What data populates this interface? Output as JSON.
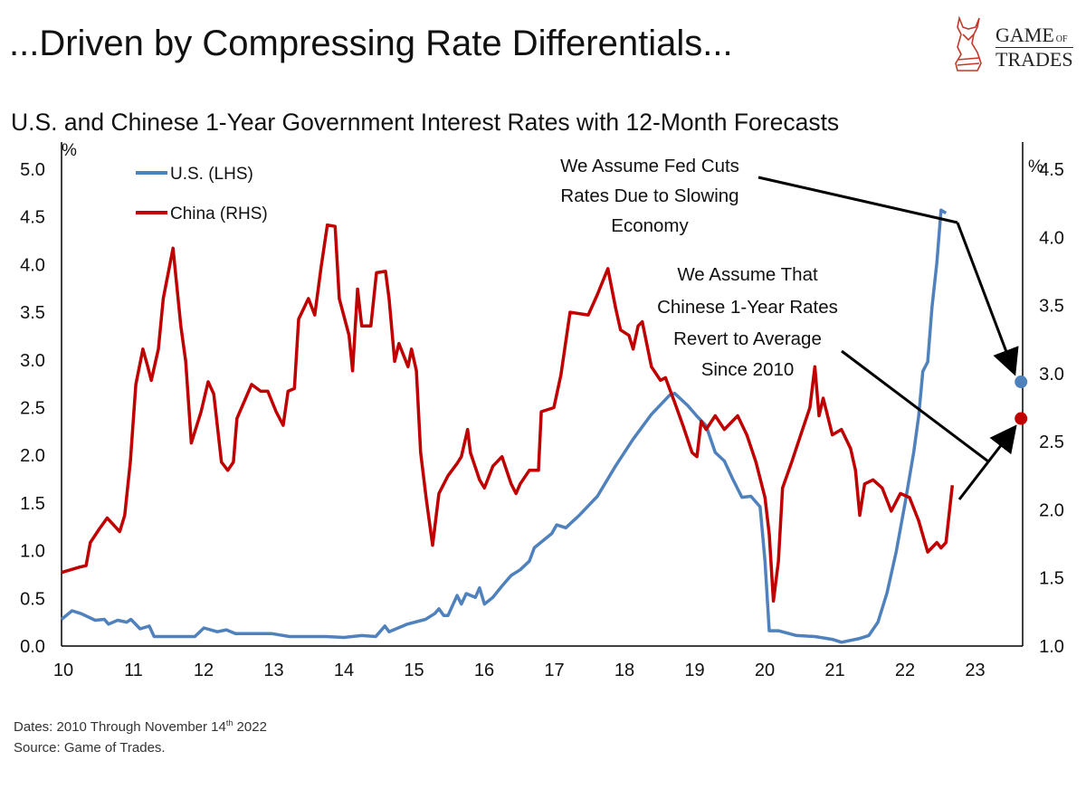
{
  "title": "...Driven by Compressing Rate Differentials...",
  "logo": {
    "line1": "GAME",
    "of": "OF",
    "line2": "TRADES"
  },
  "footer": {
    "dates_prefix": "Dates: 2010 Through November 14",
    "dates_sup": "th",
    "dates_suffix": " 2022",
    "source": "Source: Game of Trades."
  },
  "chart_data": {
    "type": "line",
    "title": "U.S. and Chinese 1-Year Government Interest Rates with 12-Month Forecasts",
    "ylabel_left": "%",
    "ylabel_right": "%",
    "xlim": [
      2010,
      2024.1
    ],
    "ylim_left": [
      0,
      5
    ],
    "ylim_right": [
      1,
      4.5
    ],
    "x_ticks": [
      {
        "v": 2010,
        "label": "10"
      },
      {
        "v": 2011,
        "label": "11"
      },
      {
        "v": 2012,
        "label": "12"
      },
      {
        "v": 2013,
        "label": "13"
      },
      {
        "v": 2014,
        "label": "14"
      },
      {
        "v": 2015,
        "label": "15"
      },
      {
        "v": 2016,
        "label": "16"
      },
      {
        "v": 2017,
        "label": "17"
      },
      {
        "v": 2018,
        "label": "18"
      },
      {
        "v": 2019,
        "label": "19"
      },
      {
        "v": 2020,
        "label": "20"
      },
      {
        "v": 2021,
        "label": "21"
      },
      {
        "v": 2022,
        "label": "22"
      },
      {
        "v": 2023,
        "label": "23"
      }
    ],
    "y_ticks_left": [
      "0.0",
      "0.5",
      "1.0",
      "1.5",
      "2.0",
      "2.5",
      "3.0",
      "3.5",
      "4.0",
      "4.5",
      "5.0"
    ],
    "y_ticks_right": [
      "1.0",
      "1.5",
      "2.0",
      "2.5",
      "3.0",
      "3.5",
      "4.0",
      "4.5"
    ],
    "legend_position": "top-left",
    "grid": false,
    "series": [
      {
        "name": "U.S. (LHS)",
        "axis": "left",
        "color": "#4f81bd",
        "x": [
          2010.0,
          2010.15,
          2010.28,
          2010.48,
          2010.61,
          2010.67,
          2010.8,
          2010.93,
          2010.99,
          2011.12,
          2011.25,
          2011.32,
          2011.9,
          2012.03,
          2012.22,
          2012.35,
          2012.48,
          2012.74,
          2013.0,
          2013.25,
          2013.51,
          2013.77,
          2014.03,
          2014.28,
          2014.48,
          2014.54,
          2014.61,
          2014.67,
          2014.93,
          2015.19,
          2015.32,
          2015.38,
          2015.45,
          2015.51,
          2015.64,
          2015.7,
          2015.77,
          2015.9,
          2015.96,
          2016.03,
          2016.15,
          2016.28,
          2016.41,
          2016.54,
          2016.67,
          2016.74,
          2016.99,
          2017.06,
          2017.19,
          2017.38,
          2017.64,
          2017.9,
          2018.15,
          2018.41,
          2018.67,
          2018.74,
          2018.93,
          2019.06,
          2019.19,
          2019.32,
          2019.45,
          2019.57,
          2019.7,
          2019.83,
          2019.96,
          2020.03,
          2020.09,
          2020.22,
          2020.48,
          2020.74,
          2020.99,
          2021.12,
          2021.38,
          2021.51,
          2021.64,
          2021.77,
          2021.9,
          2022.03,
          2022.15,
          2022.22,
          2022.28,
          2022.35,
          2022.41,
          2022.48,
          2022.54,
          2022.61
        ],
        "y": [
          0.28,
          0.37,
          0.34,
          0.27,
          0.28,
          0.23,
          0.27,
          0.25,
          0.28,
          0.18,
          0.21,
          0.1,
          0.1,
          0.19,
          0.15,
          0.17,
          0.13,
          0.13,
          0.13,
          0.1,
          0.1,
          0.1,
          0.09,
          0.11,
          0.1,
          0.15,
          0.21,
          0.15,
          0.23,
          0.28,
          0.34,
          0.39,
          0.32,
          0.32,
          0.53,
          0.44,
          0.55,
          0.51,
          0.61,
          0.44,
          0.51,
          0.63,
          0.74,
          0.8,
          0.89,
          1.03,
          1.18,
          1.27,
          1.24,
          1.37,
          1.57,
          1.89,
          2.17,
          2.43,
          2.63,
          2.65,
          2.52,
          2.41,
          2.31,
          2.03,
          1.94,
          1.75,
          1.56,
          1.57,
          1.46,
          0.89,
          0.16,
          0.16,
          0.11,
          0.1,
          0.07,
          0.04,
          0.08,
          0.11,
          0.25,
          0.56,
          0.99,
          1.51,
          2.03,
          2.41,
          2.88,
          2.98,
          3.55,
          4.02,
          4.57,
          4.54
        ],
        "forecast": {
          "x": 2023.68,
          "y": 2.77
        }
      },
      {
        "name": "China (RHS)",
        "axis": "right",
        "color": "#c00000",
        "x": [
          2010.0,
          2010.26,
          2010.35,
          2010.41,
          2010.54,
          2010.65,
          2010.83,
          2010.9,
          2010.98,
          2011.06,
          2011.16,
          2011.23,
          2011.28,
          2011.38,
          2011.45,
          2011.59,
          2011.7,
          2011.77,
          2011.85,
          2011.99,
          2012.09,
          2012.17,
          2012.28,
          2012.37,
          2012.45,
          2012.5,
          2012.71,
          2012.84,
          2012.94,
          2013.06,
          2013.16,
          2013.23,
          2013.32,
          2013.38,
          2013.52,
          2013.61,
          2013.7,
          2013.79,
          2013.9,
          2013.96,
          2014.1,
          2014.15,
          2014.22,
          2014.28,
          2014.41,
          2014.49,
          2014.62,
          2014.67,
          2014.75,
          2014.81,
          2014.94,
          2014.99,
          2015.06,
          2015.12,
          2015.2,
          2015.29,
          2015.38,
          2015.51,
          2015.64,
          2015.7,
          2015.79,
          2015.83,
          2015.96,
          2016.03,
          2016.15,
          2016.28,
          2016.41,
          2016.48,
          2016.54,
          2016.67,
          2016.8,
          2016.84,
          2017.02,
          2017.12,
          2017.25,
          2017.51,
          2017.64,
          2017.79,
          2017.9,
          2017.97,
          2018.09,
          2018.15,
          2018.22,
          2018.28,
          2018.41,
          2018.54,
          2018.61,
          2018.74,
          2018.86,
          2018.99,
          2019.06,
          2019.12,
          2019.19,
          2019.32,
          2019.45,
          2019.64,
          2019.77,
          2019.9,
          2020.03,
          2020.09,
          2020.15,
          2020.22,
          2020.28,
          2020.41,
          2020.54,
          2020.67,
          2020.74,
          2020.8,
          2020.86,
          2020.99,
          2021.12,
          2021.25,
          2021.32,
          2021.38,
          2021.45,
          2021.57,
          2021.7,
          2021.83,
          2021.96,
          2022.09,
          2022.22,
          2022.35,
          2022.48,
          2022.54,
          2022.61,
          2022.7
        ],
        "y": [
          1.54,
          1.58,
          1.59,
          1.76,
          1.86,
          1.94,
          1.84,
          1.96,
          2.35,
          2.92,
          3.18,
          3.05,
          2.95,
          3.18,
          3.55,
          3.92,
          3.35,
          3.09,
          2.49,
          2.72,
          2.94,
          2.85,
          2.35,
          2.29,
          2.35,
          2.67,
          2.92,
          2.87,
          2.87,
          2.72,
          2.62,
          2.87,
          2.89,
          3.4,
          3.55,
          3.43,
          3.78,
          4.09,
          4.08,
          3.55,
          3.28,
          3.02,
          3.62,
          3.35,
          3.35,
          3.74,
          3.75,
          3.55,
          3.09,
          3.22,
          3.05,
          3.18,
          3.02,
          2.42,
          2.08,
          1.74,
          2.12,
          2.25,
          2.34,
          2.39,
          2.59,
          2.42,
          2.22,
          2.16,
          2.32,
          2.39,
          2.19,
          2.12,
          2.19,
          2.29,
          2.29,
          2.72,
          2.75,
          2.99,
          3.45,
          3.43,
          3.58,
          3.77,
          3.48,
          3.32,
          3.28,
          3.18,
          3.35,
          3.38,
          3.05,
          2.95,
          2.97,
          2.79,
          2.62,
          2.42,
          2.39,
          2.65,
          2.59,
          2.69,
          2.59,
          2.69,
          2.55,
          2.35,
          2.09,
          1.82,
          1.33,
          1.62,
          2.16,
          2.35,
          2.55,
          2.75,
          3.05,
          2.69,
          2.82,
          2.55,
          2.59,
          2.45,
          2.29,
          1.96,
          2.19,
          2.22,
          2.16,
          1.99,
          2.12,
          2.09,
          1.92,
          1.69,
          1.76,
          1.72,
          1.76,
          2.18
        ],
        "forecast": {
          "x": 2023.68,
          "y": 2.67
        }
      }
    ],
    "annotations": [
      {
        "lines": [
          "We Assume Fed Cuts",
          "Rates Due to Slowing",
          "Economy"
        ]
      },
      {
        "lines": [
          "We Assume That",
          "Chinese 1-Year Rates",
          "Revert to Average",
          "Since 2010"
        ]
      }
    ]
  }
}
